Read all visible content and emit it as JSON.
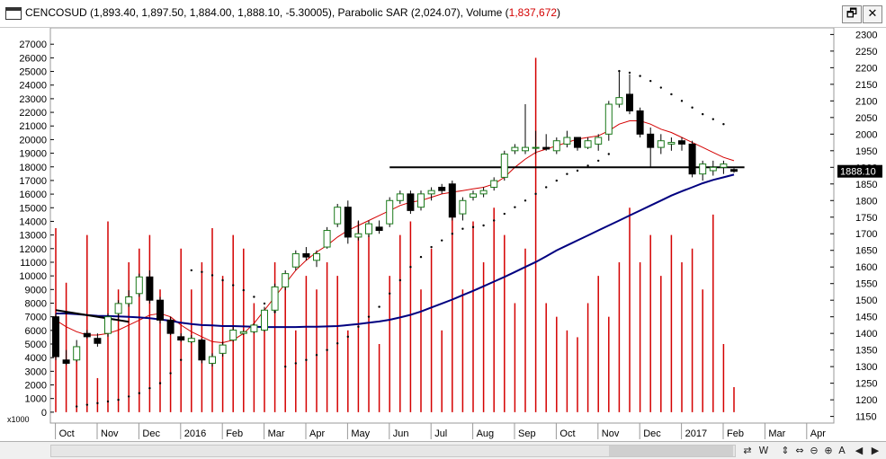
{
  "header": {
    "title_main": "CENCOSUD (1,893.40, 1,897.50, 1,884.00, 1,888.10, -5.30005), Parabolic SAR (2,024.07), Volume (",
    "title_volume": "1,837,672",
    "title_close": ")",
    "restore_icon": "restore-window-icon",
    "close_icon": "close-window-icon",
    "restore_glyph": "🗗",
    "close_glyph": "✕"
  },
  "bottombar": {
    "buttons": [
      "⇄",
      "W",
      "⇕",
      "⇔",
      "⊖",
      "⊕",
      "A",
      "◀",
      "▶"
    ]
  },
  "chart_data": {
    "type": "candlestick",
    "instrument": "CENCOSUD",
    "price_axis": {
      "ticks": [
        1150,
        1200,
        1250,
        1300,
        1350,
        1400,
        1450,
        1500,
        1550,
        1600,
        1650,
        1700,
        1750,
        1800,
        1850,
        1900,
        1950,
        2000,
        2050,
        2100,
        2150,
        2200,
        2250,
        2300
      ],
      "range": [
        1130,
        2320
      ],
      "side": "right"
    },
    "volume_axis": {
      "ticks": [
        0,
        1000,
        2000,
        3000,
        4000,
        5000,
        6000,
        7000,
        8000,
        9000,
        10000,
        11000,
        12000,
        13000,
        14000,
        15000,
        16000,
        17000,
        18000,
        19000,
        20000,
        21000,
        22000,
        23000,
        24000,
        25000,
        26000,
        27000
      ],
      "range": [
        -800,
        28200
      ],
      "unit": "x1000",
      "side": "left"
    },
    "x_labels": [
      {
        "label": "Oct",
        "i": 1
      },
      {
        "label": "Nov",
        "i": 5
      },
      {
        "label": "Dec",
        "i": 9
      },
      {
        "label": "2016",
        "i": 13
      },
      {
        "label": "Feb",
        "i": 17
      },
      {
        "label": "Mar",
        "i": 21
      },
      {
        "label": "Apr",
        "i": 25
      },
      {
        "label": "May",
        "i": 29
      },
      {
        "label": "Jun",
        "i": 33
      },
      {
        "label": "Jul",
        "i": 37
      },
      {
        "label": "Aug",
        "i": 41
      },
      {
        "label": "Sep",
        "i": 45
      },
      {
        "label": "Oct",
        "i": 49
      },
      {
        "label": "Nov",
        "i": 53
      },
      {
        "label": "Dec",
        "i": 57
      },
      {
        "label": "2017",
        "i": 61
      },
      {
        "label": "Feb",
        "i": 65
      },
      {
        "label": "Mar",
        "i": 69
      },
      {
        "label": "Apr",
        "i": 73
      }
    ],
    "last_price_label": "1888.10",
    "bars": [
      {
        "o": 1450,
        "h": 1460,
        "l": 1320,
        "c": 1330,
        "v": 13500
      },
      {
        "o": 1320,
        "h": 1350,
        "l": 1305,
        "c": 1310,
        "v": 9500
      },
      {
        "o": 1320,
        "h": 1380,
        "l": 1315,
        "c": 1360,
        "v": 4000
      },
      {
        "o": 1400,
        "h": 1410,
        "l": 1385,
        "c": 1390,
        "v": 13000
      },
      {
        "o": 1385,
        "h": 1400,
        "l": 1360,
        "c": 1370,
        "v": 2500
      },
      {
        "o": 1400,
        "h": 1460,
        "l": 1390,
        "c": 1450,
        "v": 14000
      },
      {
        "o": 1460,
        "h": 1500,
        "l": 1440,
        "c": 1490,
        "v": 9000
      },
      {
        "o": 1490,
        "h": 1530,
        "l": 1480,
        "c": 1510,
        "v": 11000
      },
      {
        "o": 1520,
        "h": 1580,
        "l": 1510,
        "c": 1570,
        "v": 12000
      },
      {
        "o": 1570,
        "h": 1590,
        "l": 1490,
        "c": 1500,
        "v": 13000
      },
      {
        "o": 1500,
        "h": 1510,
        "l": 1430,
        "c": 1440,
        "v": 9000
      },
      {
        "o": 1440,
        "h": 1450,
        "l": 1395,
        "c": 1400,
        "v": 7000
      },
      {
        "o": 1390,
        "h": 1400,
        "l": 1375,
        "c": 1380,
        "v": 12000
      },
      {
        "o": 1375,
        "h": 1395,
        "l": 1370,
        "c": 1385,
        "v": 9000
      },
      {
        "o": 1380,
        "h": 1385,
        "l": 1310,
        "c": 1320,
        "v": 11000
      },
      {
        "o": 1310,
        "h": 1340,
        "l": 1300,
        "c": 1330,
        "v": 13500
      },
      {
        "o": 1340,
        "h": 1375,
        "l": 1330,
        "c": 1365,
        "v": 10000
      },
      {
        "o": 1380,
        "h": 1420,
        "l": 1375,
        "c": 1410,
        "v": 13000
      },
      {
        "o": 1400,
        "h": 1410,
        "l": 1395,
        "c": 1405,
        "v": 12000
      },
      {
        "o": 1405,
        "h": 1430,
        "l": 1400,
        "c": 1425,
        "v": 8000
      },
      {
        "o": 1410,
        "h": 1480,
        "l": 1405,
        "c": 1470,
        "v": 7000
      },
      {
        "o": 1470,
        "h": 1550,
        "l": 1460,
        "c": 1540,
        "v": 11000
      },
      {
        "o": 1540,
        "h": 1590,
        "l": 1530,
        "c": 1580,
        "v": 10000
      },
      {
        "o": 1600,
        "h": 1650,
        "l": 1590,
        "c": 1640,
        "v": 6000
      },
      {
        "o": 1640,
        "h": 1660,
        "l": 1620,
        "c": 1630,
        "v": 10000
      },
      {
        "o": 1620,
        "h": 1650,
        "l": 1600,
        "c": 1640,
        "v": 9000
      },
      {
        "o": 1660,
        "h": 1720,
        "l": 1655,
        "c": 1710,
        "v": 11000
      },
      {
        "o": 1730,
        "h": 1790,
        "l": 1720,
        "c": 1780,
        "v": 10000
      },
      {
        "o": 1780,
        "h": 1800,
        "l": 1670,
        "c": 1690,
        "v": 6000
      },
      {
        "o": 1690,
        "h": 1740,
        "l": 1680,
        "c": 1700,
        "v": 14000
      },
      {
        "o": 1700,
        "h": 1740,
        "l": 1690,
        "c": 1730,
        "v": 13000
      },
      {
        "o": 1720,
        "h": 1740,
        "l": 1700,
        "c": 1710,
        "v": 5000
      },
      {
        "o": 1730,
        "h": 1810,
        "l": 1720,
        "c": 1800,
        "v": 10000
      },
      {
        "o": 1800,
        "h": 1830,
        "l": 1790,
        "c": 1820,
        "v": 13000
      },
      {
        "o": 1820,
        "h": 1830,
        "l": 1760,
        "c": 1770,
        "v": 14000
      },
      {
        "o": 1780,
        "h": 1830,
        "l": 1770,
        "c": 1820,
        "v": 9000
      },
      {
        "o": 1820,
        "h": 1840,
        "l": 1800,
        "c": 1830,
        "v": 12000
      },
      {
        "o": 1840,
        "h": 1850,
        "l": 1820,
        "c": 1830,
        "v": 6000
      },
      {
        "o": 1850,
        "h": 1860,
        "l": 1740,
        "c": 1750,
        "v": 16000
      },
      {
        "o": 1760,
        "h": 1810,
        "l": 1740,
        "c": 1800,
        "v": 9000
      },
      {
        "o": 1810,
        "h": 1830,
        "l": 1800,
        "c": 1820,
        "v": 14000
      },
      {
        "o": 1820,
        "h": 1840,
        "l": 1810,
        "c": 1830,
        "v": 11000
      },
      {
        "o": 1840,
        "h": 1870,
        "l": 1830,
        "c": 1860,
        "v": 15000
      },
      {
        "o": 1870,
        "h": 1950,
        "l": 1860,
        "c": 1940,
        "v": 13000
      },
      {
        "o": 1950,
        "h": 1970,
        "l": 1940,
        "c": 1960,
        "v": 8000
      },
      {
        "o": 1950,
        "h": 2090,
        "l": 1940,
        "c": 1960,
        "v": 12000
      },
      {
        "o": 1960,
        "h": 2010,
        "l": 1940,
        "c": 1960,
        "v": 26000
      },
      {
        "o": 1960,
        "h": 2000,
        "l": 1950,
        "c": 1955,
        "v": 8000
      },
      {
        "o": 1950,
        "h": 1990,
        "l": 1940,
        "c": 1980,
        "v": 7000
      },
      {
        "o": 1970,
        "h": 2010,
        "l": 1960,
        "c": 1990,
        "v": 6000
      },
      {
        "o": 1990,
        "h": 1990,
        "l": 1950,
        "c": 1960,
        "v": 5500
      },
      {
        "o": 1960,
        "h": 1990,
        "l": 1955,
        "c": 1980,
        "v": 8000
      },
      {
        "o": 1970,
        "h": 2000,
        "l": 1950,
        "c": 1990,
        "v": 10000
      },
      {
        "o": 2000,
        "h": 2100,
        "l": 1980,
        "c": 2090,
        "v": 7000
      },
      {
        "o": 2090,
        "h": 2190,
        "l": 2080,
        "c": 2110,
        "v": 11000
      },
      {
        "o": 2120,
        "h": 2180,
        "l": 2060,
        "c": 2070,
        "v": 15000
      },
      {
        "o": 2070,
        "h": 2080,
        "l": 1990,
        "c": 2000,
        "v": 11000
      },
      {
        "o": 2000,
        "h": 2020,
        "l": 1900,
        "c": 1960,
        "v": 13000
      },
      {
        "o": 1960,
        "h": 2000,
        "l": 1940,
        "c": 1980,
        "v": 10000
      },
      {
        "o": 1970,
        "h": 1990,
        "l": 1950,
        "c": 1975,
        "v": 13000
      },
      {
        "o": 1980,
        "h": 1990,
        "l": 1950,
        "c": 1970,
        "v": 11000
      },
      {
        "o": 1970,
        "h": 1980,
        "l": 1870,
        "c": 1880,
        "v": 12000
      },
      {
        "o": 1880,
        "h": 1920,
        "l": 1860,
        "c": 1910,
        "v": 9000
      },
      {
        "o": 1890,
        "h": 1920,
        "l": 1875,
        "c": 1900,
        "v": 14500
      },
      {
        "o": 1900,
        "h": 1920,
        "l": 1880,
        "c": 1910,
        "v": 5000
      },
      {
        "o": 1893.4,
        "h": 1897.5,
        "l": 1884,
        "c": 1888.1,
        "v": 1837.672
      }
    ],
    "sar": [
      {
        "i": 0,
        "v": 1450
      },
      {
        "i": 1,
        "v": 1460
      },
      {
        "i": 2,
        "v": 1180
      },
      {
        "i": 3,
        "v": 1185
      },
      {
        "i": 4,
        "v": 1190
      },
      {
        "i": 5,
        "v": 1195
      },
      {
        "i": 6,
        "v": 1200
      },
      {
        "i": 7,
        "v": 1210
      },
      {
        "i": 8,
        "v": 1220
      },
      {
        "i": 9,
        "v": 1235
      },
      {
        "i": 10,
        "v": 1250
      },
      {
        "i": 11,
        "v": 1280
      },
      {
        "i": 12,
        "v": 1320
      },
      {
        "i": 13,
        "v": 1590
      },
      {
        "i": 14,
        "v": 1585
      },
      {
        "i": 15,
        "v": 1575
      },
      {
        "i": 16,
        "v": 1560
      },
      {
        "i": 17,
        "v": 1545
      },
      {
        "i": 18,
        "v": 1530
      },
      {
        "i": 19,
        "v": 1510
      },
      {
        "i": 20,
        "v": 1490
      },
      {
        "i": 21,
        "v": 1465
      },
      {
        "i": 22,
        "v": 1300
      },
      {
        "i": 23,
        "v": 1310
      },
      {
        "i": 24,
        "v": 1320
      },
      {
        "i": 25,
        "v": 1335
      },
      {
        "i": 26,
        "v": 1350
      },
      {
        "i": 27,
        "v": 1370
      },
      {
        "i": 28,
        "v": 1390
      },
      {
        "i": 29,
        "v": 1420
      },
      {
        "i": 30,
        "v": 1450
      },
      {
        "i": 31,
        "v": 1480
      },
      {
        "i": 32,
        "v": 1520
      },
      {
        "i": 33,
        "v": 1560
      },
      {
        "i": 34,
        "v": 1600
      },
      {
        "i": 35,
        "v": 1630
      },
      {
        "i": 36,
        "v": 1660
      },
      {
        "i": 37,
        "v": 1680
      },
      {
        "i": 38,
        "v": 1700
      },
      {
        "i": 39,
        "v": 1715
      },
      {
        "i": 40,
        "v": 1720
      },
      {
        "i": 41,
        "v": 1725
      },
      {
        "i": 42,
        "v": 1740
      },
      {
        "i": 43,
        "v": 1760
      },
      {
        "i": 44,
        "v": 1780
      },
      {
        "i": 45,
        "v": 1800
      },
      {
        "i": 46,
        "v": 1820
      },
      {
        "i": 47,
        "v": 1840
      },
      {
        "i": 48,
        "v": 1860
      },
      {
        "i": 49,
        "v": 1880
      },
      {
        "i": 50,
        "v": 1890
      },
      {
        "i": 51,
        "v": 1905
      },
      {
        "i": 52,
        "v": 1920
      },
      {
        "i": 53,
        "v": 1940
      },
      {
        "i": 54,
        "v": 2190
      },
      {
        "i": 55,
        "v": 2185
      },
      {
        "i": 56,
        "v": 2175
      },
      {
        "i": 57,
        "v": 2160
      },
      {
        "i": 58,
        "v": 2140
      },
      {
        "i": 59,
        "v": 2120
      },
      {
        "i": 60,
        "v": 2100
      },
      {
        "i": 61,
        "v": 2080
      },
      {
        "i": 62,
        "v": 2060
      },
      {
        "i": 63,
        "v": 2045
      },
      {
        "i": 64,
        "v": 2030
      }
    ],
    "ma_fast": {
      "color": "#d40000",
      "values": [
        1440,
        1420,
        1405,
        1395,
        1395,
        1400,
        1410,
        1425,
        1440,
        1455,
        1460,
        1450,
        1425,
        1405,
        1390,
        1375,
        1372,
        1380,
        1400,
        1430,
        1470,
        1510,
        1550,
        1590,
        1620,
        1645,
        1665,
        1690,
        1710,
        1725,
        1740,
        1755,
        1770,
        1785,
        1795,
        1800,
        1810,
        1820,
        1825,
        1830,
        1835,
        1840,
        1850,
        1870,
        1900,
        1925,
        1945,
        1955,
        1965,
        1975,
        1985,
        1990,
        1995,
        2010,
        2030,
        2040,
        2040,
        2030,
        2015,
        2005,
        1990,
        1975,
        1960,
        1945,
        1930,
        1920
      ]
    },
    "ma_slow": {
      "color": "#000080",
      "values": [
        1460,
        1460,
        1458,
        1455,
        1453,
        1452,
        1451,
        1450,
        1448,
        1446,
        1442,
        1438,
        1432,
        1428,
        1425,
        1424,
        1422,
        1422,
        1421,
        1420,
        1419,
        1419,
        1419,
        1419,
        1420,
        1420,
        1421,
        1422,
        1425,
        1428,
        1432,
        1436,
        1441,
        1448,
        1456,
        1466,
        1478,
        1490,
        1502,
        1515,
        1528,
        1542,
        1556,
        1570,
        1585,
        1600,
        1615,
        1632,
        1650,
        1665,
        1680,
        1695,
        1710,
        1725,
        1740,
        1755,
        1770,
        1785,
        1800,
        1815,
        1828,
        1840,
        1852,
        1862,
        1870,
        1878
      ]
    },
    "lines": [
      {
        "name": "resistance",
        "color": "#000000",
        "from": {
          "i": 32,
          "v": 1900
        },
        "to": {
          "i": 66,
          "v": 1900
        }
      },
      {
        "name": "trendline",
        "color": "#000000",
        "from": {
          "i": 0,
          "v": 1470
        },
        "to": {
          "i": 7,
          "v": 1435
        }
      }
    ],
    "grid": false,
    "legend": "none"
  }
}
